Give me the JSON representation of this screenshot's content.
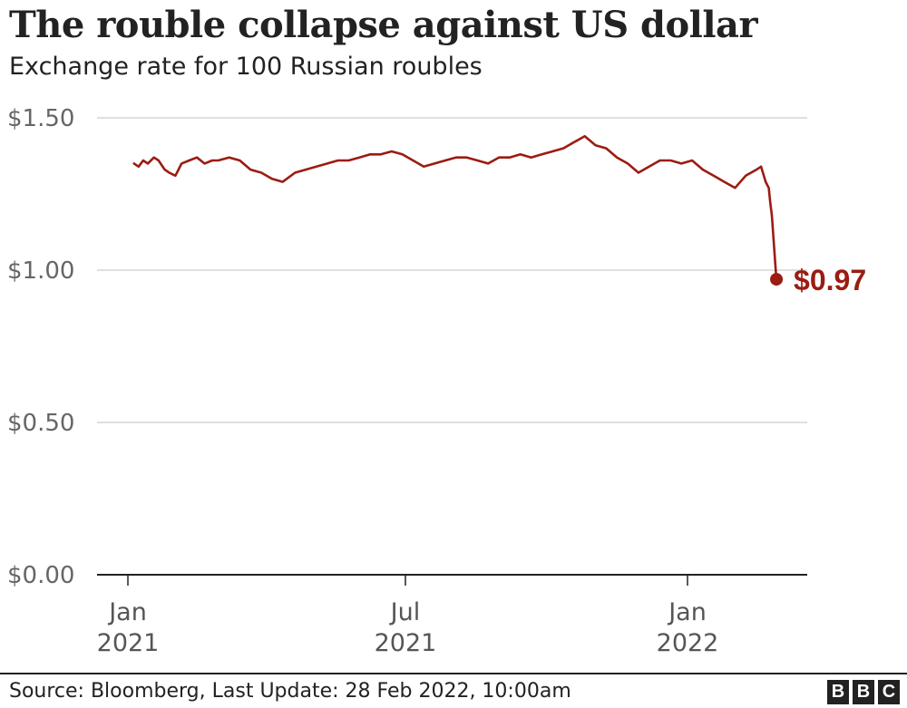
{
  "header": {
    "title": "The rouble collapse against US dollar",
    "subtitle": "Exchange rate for 100 Russian roubles"
  },
  "footer": {
    "source": "Source: Bloomberg, Last Update: 28 Feb 2022, 10:00am",
    "logo": [
      "B",
      "B",
      "C"
    ]
  },
  "colors": {
    "line": "#9b1c12",
    "grid": "#cccccc",
    "axis": "#222222",
    "tick_text": "#666666"
  },
  "chart_data": {
    "type": "line",
    "title": "The rouble collapse against US dollar",
    "subtitle": "Exchange rate for 100 Russian roubles",
    "xlabel": "",
    "ylabel": "",
    "ylim": [
      0,
      1.5
    ],
    "yticks": [
      0,
      0.5,
      1.0,
      1.5
    ],
    "ytick_labels": [
      "$0.00",
      "$0.50",
      "$1.00",
      "$1.50"
    ],
    "xticks": [
      {
        "date": "2021-01-01",
        "line1": "Jan",
        "line2": "2021"
      },
      {
        "date": "2021-07-01",
        "line1": "Jul",
        "line2": "2021"
      },
      {
        "date": "2022-01-01",
        "line1": "Jan",
        "line2": "2022"
      }
    ],
    "grid": true,
    "end_label": "$0.97",
    "series": [
      {
        "x": [
          "2021-01-05",
          "2021-01-08",
          "2021-01-11",
          "2021-01-14",
          "2021-01-18",
          "2021-01-21",
          "2021-01-25",
          "2021-01-28",
          "2021-02-01",
          "2021-02-05",
          "2021-02-10",
          "2021-02-15",
          "2021-02-20",
          "2021-02-25",
          "2021-03-01",
          "2021-03-08",
          "2021-03-15",
          "2021-03-22",
          "2021-03-29",
          "2021-04-05",
          "2021-04-12",
          "2021-04-20",
          "2021-04-27",
          "2021-05-04",
          "2021-05-11",
          "2021-05-18",
          "2021-05-25",
          "2021-06-01",
          "2021-06-08",
          "2021-06-15",
          "2021-06-22",
          "2021-06-29",
          "2021-07-06",
          "2021-07-13",
          "2021-07-20",
          "2021-07-27",
          "2021-08-03",
          "2021-08-10",
          "2021-08-17",
          "2021-08-24",
          "2021-08-31",
          "2021-09-07",
          "2021-09-14",
          "2021-09-21",
          "2021-09-28",
          "2021-10-05",
          "2021-10-12",
          "2021-10-19",
          "2021-10-26",
          "2021-11-02",
          "2021-11-09",
          "2021-11-16",
          "2021-11-23",
          "2021-11-30",
          "2021-12-07",
          "2021-12-14",
          "2021-12-21",
          "2021-12-28",
          "2022-01-04",
          "2022-01-11",
          "2022-01-18",
          "2022-01-25",
          "2022-02-01",
          "2022-02-08",
          "2022-02-15",
          "2022-02-18",
          "2022-02-21",
          "2022-02-23",
          "2022-02-24",
          "2022-02-25",
          "2022-02-28"
        ],
        "y": [
          1.35,
          1.34,
          1.36,
          1.35,
          1.37,
          1.36,
          1.33,
          1.32,
          1.31,
          1.35,
          1.36,
          1.37,
          1.35,
          1.36,
          1.36,
          1.37,
          1.36,
          1.33,
          1.32,
          1.3,
          1.29,
          1.32,
          1.33,
          1.34,
          1.35,
          1.36,
          1.36,
          1.37,
          1.38,
          1.38,
          1.39,
          1.38,
          1.36,
          1.34,
          1.35,
          1.36,
          1.37,
          1.37,
          1.36,
          1.35,
          1.37,
          1.37,
          1.38,
          1.37,
          1.38,
          1.39,
          1.4,
          1.42,
          1.44,
          1.41,
          1.4,
          1.37,
          1.35,
          1.32,
          1.34,
          1.36,
          1.36,
          1.35,
          1.36,
          1.33,
          1.31,
          1.29,
          1.27,
          1.31,
          1.33,
          1.34,
          1.29,
          1.27,
          1.22,
          1.18,
          0.97
        ]
      }
    ]
  }
}
